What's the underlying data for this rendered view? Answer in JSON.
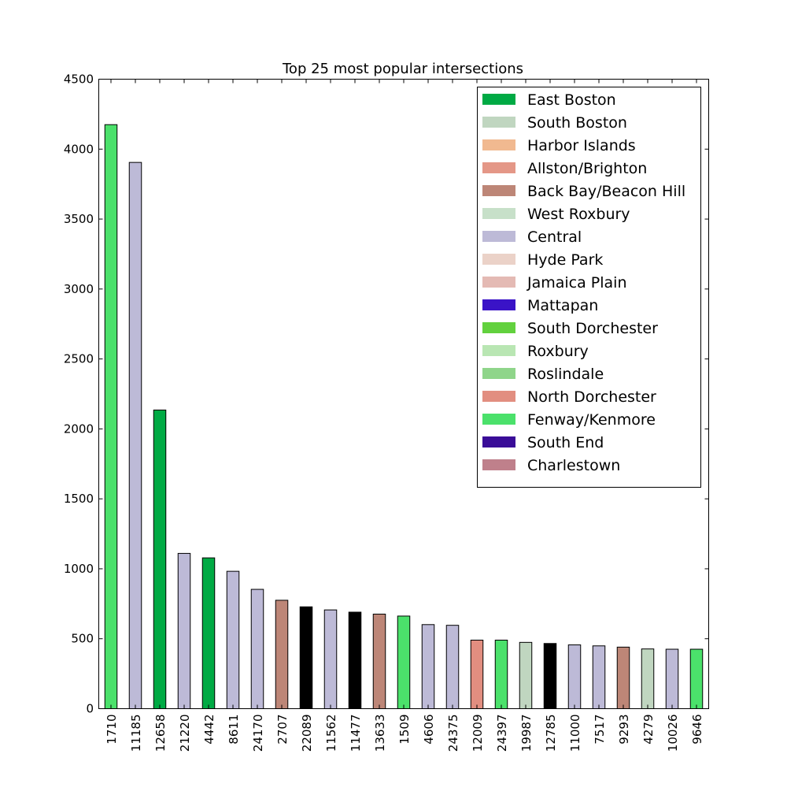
{
  "chart_data": {
    "type": "bar",
    "title": "Top 25 most popular intersections",
    "xlabel": "",
    "ylabel": "",
    "ylim": [
      0,
      4500
    ],
    "yticks": [
      0,
      500,
      1000,
      1500,
      2000,
      2500,
      3000,
      3500,
      4000,
      4500
    ],
    "grid": false,
    "legend_position": "top-right",
    "categories": [
      "1710",
      "11185",
      "12658",
      "21220",
      "4442",
      "8611",
      "24170",
      "2707",
      "22089",
      "11562",
      "11477",
      "13633",
      "1509",
      "4606",
      "24375",
      "12009",
      "24397",
      "19987",
      "12785",
      "11000",
      "7517",
      "9293",
      "4279",
      "10026",
      "9646"
    ],
    "values": [
      4175,
      3905,
      2135,
      1110,
      1078,
      982,
      853,
      775,
      728,
      706,
      690,
      676,
      662,
      601,
      596,
      490,
      490,
      474,
      466,
      456,
      449,
      440,
      427,
      425,
      425
    ],
    "bar_colors": [
      "#4be16b",
      "#bdbad7",
      "#00aa44",
      "#bdbad7",
      "#00aa44",
      "#bdbad7",
      "#bdbad7",
      "#bd8677",
      "#000000",
      "#bdbad7",
      "#000000",
      "#bd8677",
      "#4be16b",
      "#bdbad7",
      "#bdbad7",
      "#e28e80",
      "#4be16b",
      "#c0d6c0",
      "#000000",
      "#bdbad7",
      "#bdbad7",
      "#bd8677",
      "#c0d6c0",
      "#bdbad7",
      "#4be16b"
    ],
    "legend": [
      {
        "label": "East Boston",
        "color": "#00aa44"
      },
      {
        "label": "South Boston",
        "color": "#c0d6c0"
      },
      {
        "label": "Harbor Islands",
        "color": "#f1b990"
      },
      {
        "label": "Allston/Brighton",
        "color": "#e49787"
      },
      {
        "label": "Back Bay/Beacon Hill",
        "color": "#bd8677"
      },
      {
        "label": "West Roxbury",
        "color": "#c7e0c9"
      },
      {
        "label": "Central",
        "color": "#bdbad7"
      },
      {
        "label": "Hyde Park",
        "color": "#ebd2c8"
      },
      {
        "label": "Jamaica Plain",
        "color": "#e4bab4"
      },
      {
        "label": "Mattapan",
        "color": "#3a13c7"
      },
      {
        "label": "South Dorchester",
        "color": "#62d13e"
      },
      {
        "label": "Roxbury",
        "color": "#b9e6b3"
      },
      {
        "label": "Roslindale",
        "color": "#8fd58a"
      },
      {
        "label": "North Dorchester",
        "color": "#e28e80"
      },
      {
        "label": "Fenway/Kenmore",
        "color": "#4be16b"
      },
      {
        "label": "South End",
        "color": "#3a0d98"
      },
      {
        "label": "Charlestown",
        "color": "#bf808b"
      }
    ]
  }
}
